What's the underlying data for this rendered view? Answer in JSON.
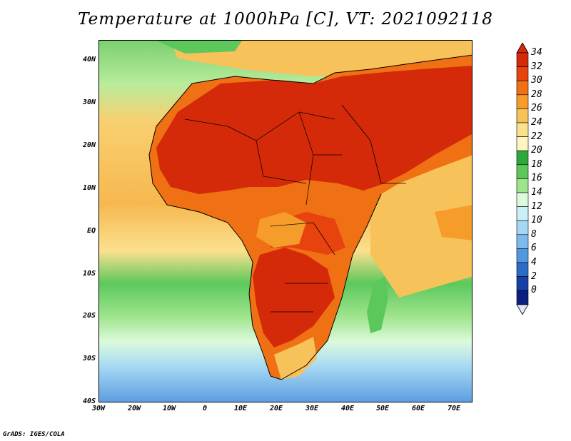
{
  "title": "Temperature at 1000hPa [C], VT: 2021092118",
  "credit": "GrADS: IGES/COLA",
  "lat_ticks": [
    "40N",
    "30N",
    "20N",
    "10N",
    "EQ",
    "10S",
    "20S",
    "30S",
    "40S"
  ],
  "lon_ticks": [
    "30W",
    "20W",
    "10W",
    "0",
    "10E",
    "20E",
    "30E",
    "40E",
    "50E",
    "60E",
    "70E"
  ],
  "colorbar": {
    "labels": [
      "34",
      "32",
      "30",
      "28",
      "26",
      "24",
      "22",
      "20",
      "18",
      "16",
      "14",
      "12",
      "10",
      "8",
      "6",
      "4",
      "2",
      "0"
    ],
    "colors": [
      "#d42a0a",
      "#e8420e",
      "#f07014",
      "#f59c2a",
      "#f8c25a",
      "#fbe08e",
      "#fdf6c0",
      "#2ca83c",
      "#5cc85c",
      "#9ee48c",
      "#dcfadc",
      "#cbeef8",
      "#a6d8f4",
      "#7ebaec",
      "#5298e0",
      "#2a6cc8",
      "#1440a8",
      "#0a207c"
    ]
  },
  "legend_colors": {
    "ocean_cool": "#5aa0e0",
    "ocean_mid": "#9ee48c",
    "ocean_warm": "#f8c25a",
    "land_hot": "#d42a0a"
  }
}
